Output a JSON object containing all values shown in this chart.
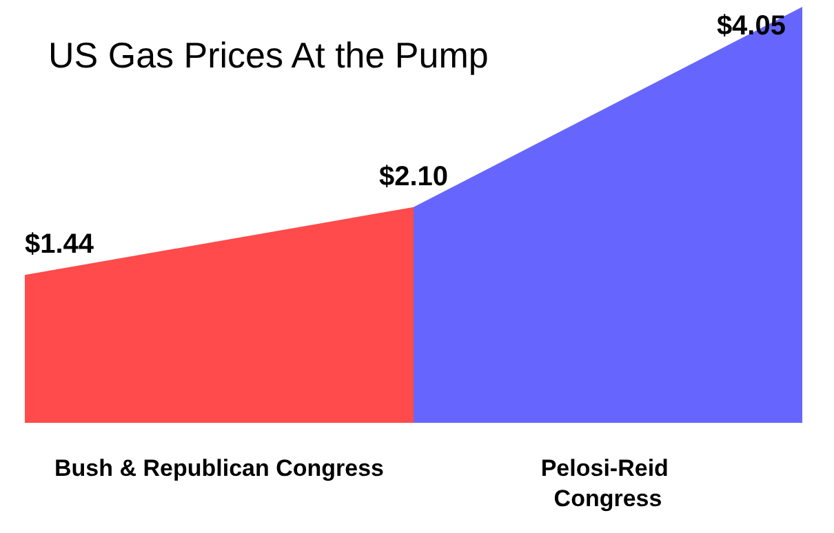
{
  "chart_data": {
    "type": "area",
    "title": "US Gas Prices At the Pump",
    "categories": [
      null,
      null,
      null
    ],
    "series": [
      {
        "color": "#ff4b4b",
        "values": [
          1.44,
          2.1,
          null
        ],
        "value_labels": [
          "$1.44",
          "$2.10",
          null
        ]
      },
      {
        "color": "#6666ff",
        "values": [
          null,
          2.1,
          4.05
        ],
        "value_labels": [
          null,
          null,
          "$4.05"
        ]
      }
    ],
    "annotations": [
      "Bush & Republican Congress",
      "Pelosi-Reid Congress"
    ],
    "grid": false,
    "marker": "none"
  }
}
